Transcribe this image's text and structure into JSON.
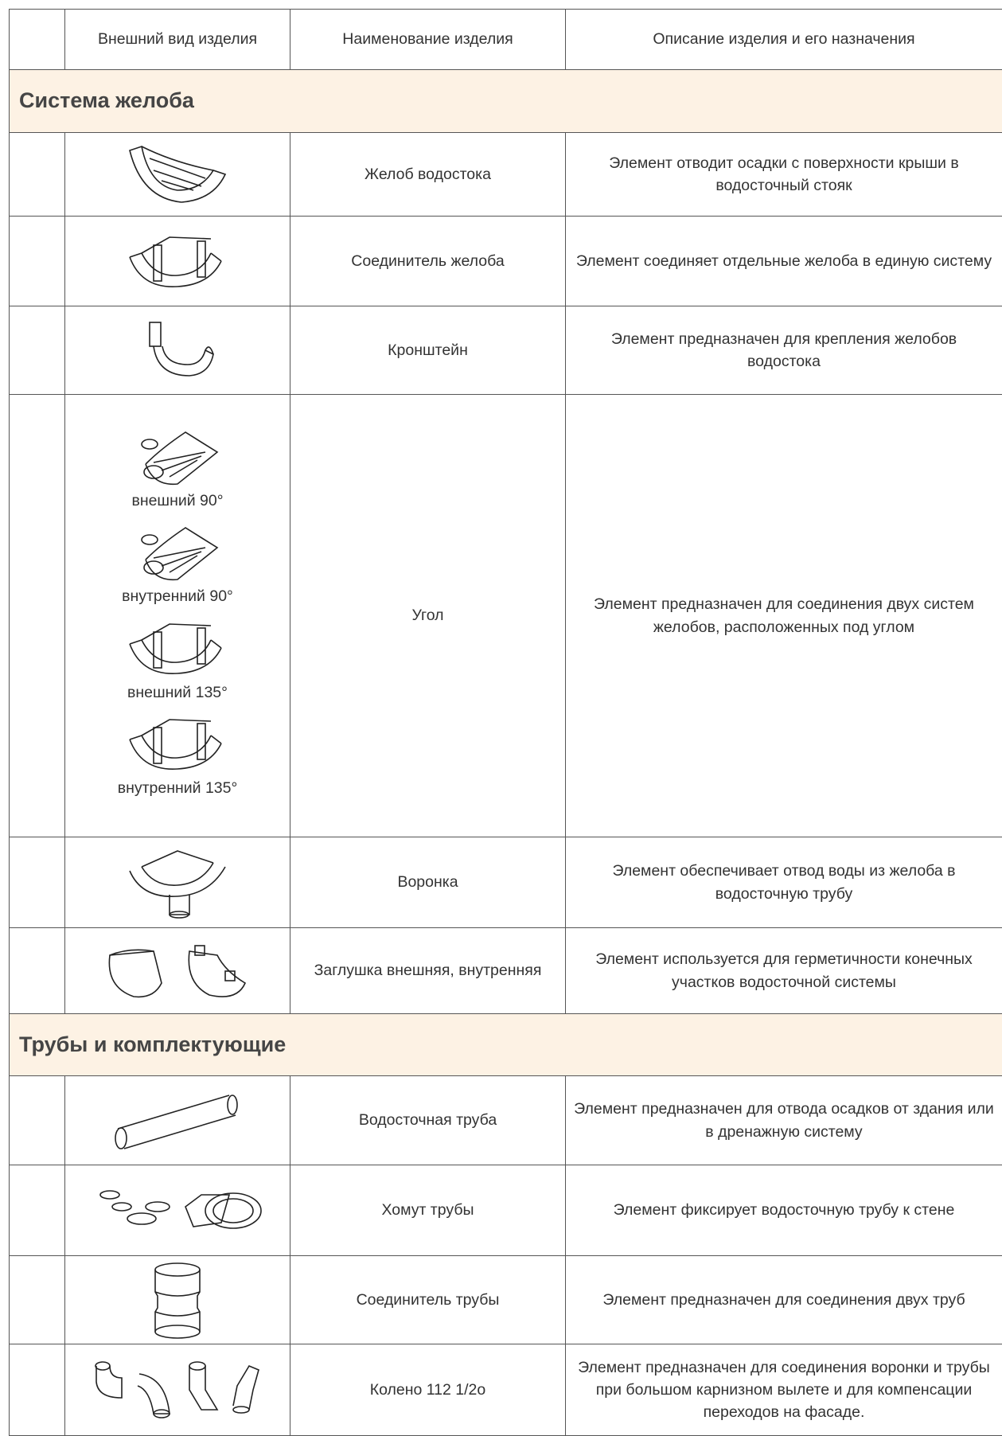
{
  "header": {
    "columns": [
      "Внешний вид изделия",
      "Наименование изделия",
      "Описание изделия и его назначения"
    ]
  },
  "sections": [
    {
      "title": "Система желоба",
      "rows": [
        {
          "name": "Желоб водостока",
          "description": "Элемент отводит осадки с поверхности крыши в водосточный стояк"
        },
        {
          "name": "Соединитель желоба",
          "description": "Элемент соединяет отдельные желоба в единую систему"
        },
        {
          "name": "Кронштейн",
          "description": "Элемент предназначен для крепления желобов водостока"
        },
        {
          "captions": [
            "внешний 90°",
            "внутренний 90°",
            "внешний 135°",
            "внутренний 135°"
          ],
          "name": "Угол",
          "description": "Элемент предназначен для соединения двух систем желобов, расположенных под углом"
        },
        {
          "name": "Воронка",
          "description": "Элемент обеспечивает отвод воды из желоба в водосточную трубу"
        },
        {
          "name": "Заглушка внешняя, внутренняя",
          "description": "Элемент используется для герметичности конечных участков водосточной системы"
        }
      ]
    },
    {
      "title": "Трубы и комплектующие",
      "rows": [
        {
          "name": "Водосточная труба",
          "description": "Элемент предназначен для отвода осадков от здания или в дренажную систему"
        },
        {
          "name": "Хомут трубы",
          "description": "Элемент фиксирует водосточную трубу к стене"
        },
        {
          "name": "Соединитель трубы",
          "description": "Элемент предназначен для соединения двух труб"
        },
        {
          "name": "Колено 112 1/2о",
          "description": "Элемент предназначен для соединения воронки и трубы при большом карнизном вылете и для компенсации переходов на фасаде."
        }
      ]
    }
  ]
}
